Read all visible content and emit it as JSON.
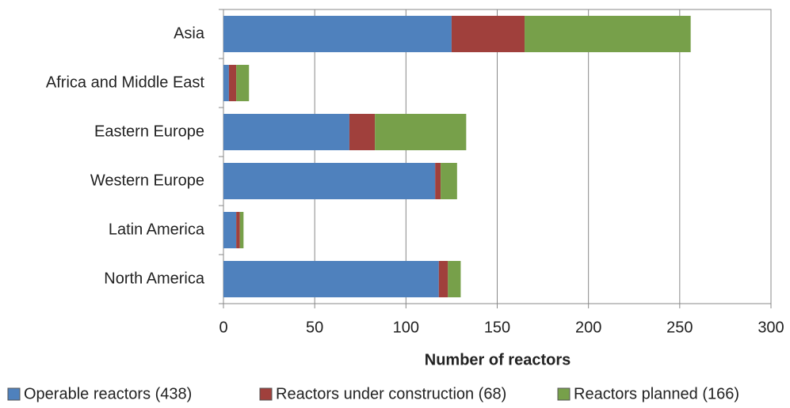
{
  "chart_data": {
    "type": "bar",
    "orientation": "horizontal",
    "stacked": true,
    "categories": [
      "Asia",
      "Africa and Middle East",
      "Eastern Europe",
      "Western Europe",
      "Latin America",
      "North America"
    ],
    "series": [
      {
        "name": "Operable reactors (438)",
        "color": "#4f81bd",
        "values": [
          125,
          3,
          69,
          116,
          7,
          118
        ]
      },
      {
        "name": "Reactors under construction (68)",
        "color": "#a0403c",
        "values": [
          40,
          4,
          14,
          3,
          2,
          5
        ]
      },
      {
        "name": "Reactors planned (166)",
        "color": "#77a04a",
        "values": [
          91,
          7,
          50,
          9,
          2,
          7
        ]
      }
    ],
    "x_label": "Number of reactors",
    "xlim": [
      0,
      300
    ],
    "xticks": [
      0,
      50,
      100,
      150,
      200,
      250,
      300
    ],
    "grid": true,
    "legend": "bottom"
  }
}
